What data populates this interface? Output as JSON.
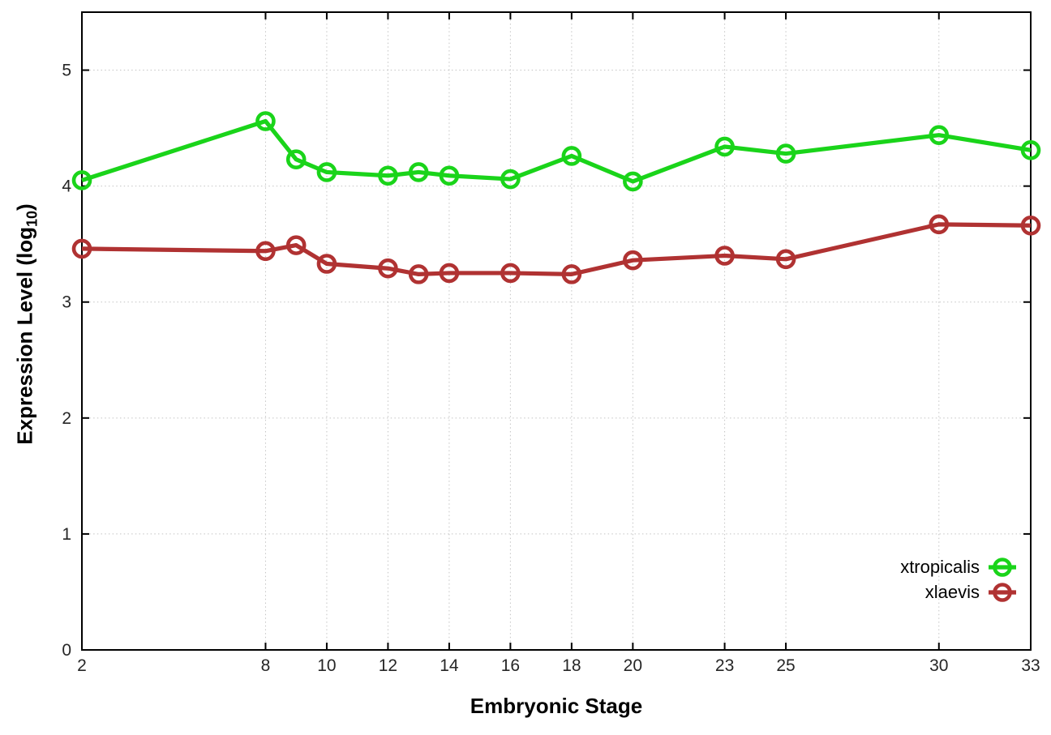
{
  "chart_data": {
    "type": "line",
    "title": "",
    "xlabel": "Embryonic Stage",
    "ylabel": "Expression Level (log10)",
    "ylabel_parts": {
      "main": "Expression Level (log",
      "sub": "10",
      "close": ")"
    },
    "xlim": [
      2,
      33
    ],
    "ylim": [
      0,
      5.5
    ],
    "xticks": [
      2,
      8,
      10,
      12,
      14,
      16,
      18,
      20,
      23,
      25,
      30,
      33
    ],
    "yticks": [
      0,
      1,
      2,
      3,
      4,
      5
    ],
    "grid": true,
    "legend_position": "inside-bottom-right",
    "x": [
      2,
      8,
      9,
      10,
      12,
      13,
      14,
      16,
      18,
      20,
      23,
      25,
      30,
      33
    ],
    "series": [
      {
        "name": "xtropicalis",
        "color": "#1ad41a",
        "values": [
          4.05,
          4.56,
          4.23,
          4.12,
          4.09,
          4.12,
          4.09,
          4.06,
          4.26,
          4.04,
          4.34,
          4.28,
          4.44,
          4.31
        ]
      },
      {
        "name": "xlaevis",
        "color": "#b03232",
        "values": [
          3.46,
          3.44,
          3.49,
          3.33,
          3.29,
          3.24,
          3.25,
          3.25,
          3.24,
          3.36,
          3.4,
          3.37,
          3.67,
          3.66
        ]
      }
    ]
  },
  "colors": {
    "axis": "#000000",
    "grid": "#c4c4c4",
    "tick_label": "#262626",
    "background": "#ffffff"
  }
}
